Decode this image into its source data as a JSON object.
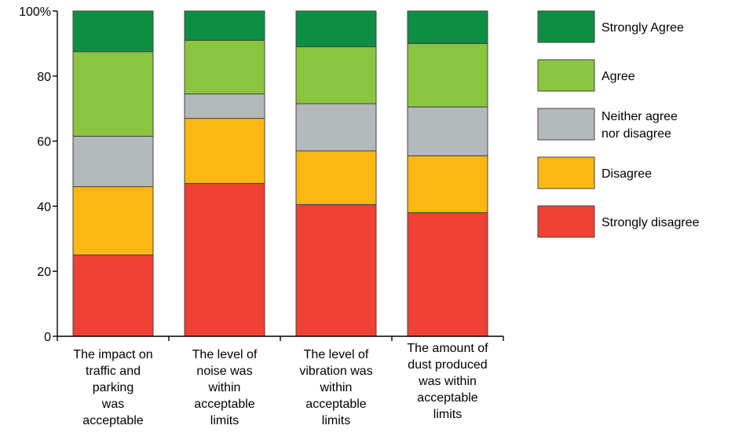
{
  "chart_data": {
    "type": "bar",
    "stacked": true,
    "categories": [
      [
        "The impact on",
        "traffic and",
        "parking",
        "was",
        "acceptable"
      ],
      [
        "The level of",
        "noise was",
        "within",
        "acceptable",
        "limits"
      ],
      [
        "The level of",
        "vibration was",
        "within",
        "acceptable",
        "limits"
      ],
      [
        "The amount of",
        "dust produced",
        "was within",
        "acceptable",
        "limits"
      ]
    ],
    "series": [
      {
        "name": "Strongly disagree",
        "color": "#ef4136",
        "values": [
          25,
          47,
          40.5,
          38
        ]
      },
      {
        "name": "Disagree",
        "color": "#fbb714",
        "values": [
          21,
          20,
          16.5,
          17.5
        ]
      },
      {
        "name": "Neither agree nor disagree",
        "color": "#b4b9bc",
        "values": [
          15.5,
          7.5,
          14.5,
          15
        ]
      },
      {
        "name": "Agree",
        "color": "#8bc53f",
        "values": [
          26,
          16.5,
          17.5,
          19.5
        ]
      },
      {
        "name": "Strongly Agree",
        "color": "#0d8f43",
        "values": [
          12.5,
          9,
          11,
          10
        ]
      }
    ],
    "legend": {
      "placement": "right",
      "order": [
        "Strongly Agree",
        "Agree",
        "Neither agree nor disagree",
        "Disagree",
        "Strongly disagree"
      ],
      "labels": [
        [
          "Strongly Agree"
        ],
        [
          "Agree"
        ],
        [
          "Neither agree",
          "nor disagree"
        ],
        [
          "Disagree"
        ],
        [
          "Strongly disagree"
        ]
      ]
    },
    "y_ticks": [
      "0",
      "20",
      "40",
      "60",
      "80",
      "100%"
    ],
    "y_tick_values": [
      0,
      20,
      40,
      60,
      80,
      100
    ],
    "ylim": [
      0,
      100
    ],
    "title": "",
    "xlabel": "",
    "ylabel": "",
    "grid": false
  }
}
